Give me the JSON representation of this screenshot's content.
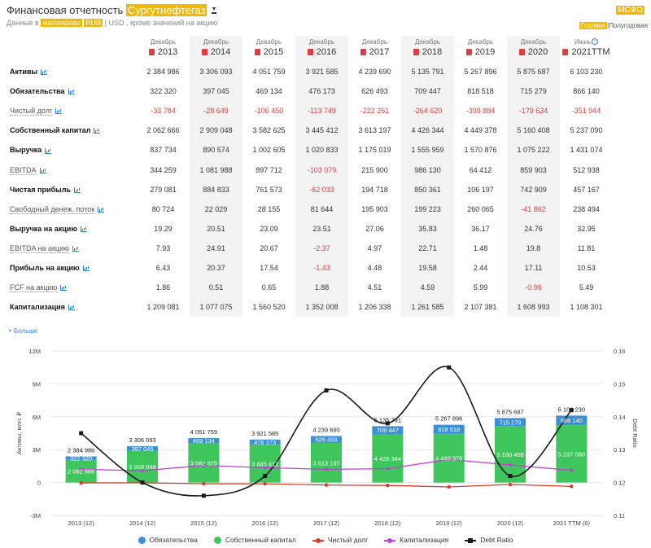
{
  "header": {
    "title_prefix": "Финансовая отчетность",
    "company": "Сургутнефтегаз",
    "units_prefix": "Данные в",
    "units": "миллионах",
    "currency_active": "RUB",
    "separator": "|",
    "currency_other": "USD",
    "units_suffix": ", кроме значений на акцию",
    "standard": "МСФО",
    "period_active": "Годовая",
    "period_other": "Полугодовая"
  },
  "table": {
    "columns": [
      {
        "month": "Декабрь",
        "year": "2013",
        "info": false,
        "shaded": false
      },
      {
        "month": "Декабрь",
        "year": "2014",
        "info": false,
        "shaded": true
      },
      {
        "month": "Декабрь",
        "year": "2015",
        "info": false,
        "shaded": false
      },
      {
        "month": "Декабрь",
        "year": "2016",
        "info": false,
        "shaded": true
      },
      {
        "month": "Декабрь",
        "year": "2017",
        "info": false,
        "shaded": false
      },
      {
        "month": "Декабрь",
        "year": "2018",
        "info": false,
        "shaded": true
      },
      {
        "month": "Декабрь",
        "year": "2019",
        "info": false,
        "shaded": false
      },
      {
        "month": "Декабрь",
        "year": "2020",
        "info": false,
        "shaded": true
      },
      {
        "month": "Июнь",
        "year": "2021TTM",
        "info": true,
        "shaded": false
      }
    ],
    "info_mark": "i",
    "rows": [
      {
        "label": "Активы",
        "bold": true,
        "values": [
          "2 384 986",
          "3 306 093",
          "4 051 759",
          "3 921 585",
          "4 239 690",
          "5 135 791",
          "5 267 896",
          "5 875 687",
          "6 103 230"
        ]
      },
      {
        "label": "Обязательства",
        "bold": true,
        "values": [
          "322 320",
          "397 045",
          "469 134",
          "476 173",
          "626 493",
          "709 447",
          "818 518",
          "715 279",
          "866 140"
        ]
      },
      {
        "label": "Чистый долг",
        "bold": false,
        "values": [
          "-33 784",
          "-28 649",
          "-106 450",
          "-113 749",
          "-222 261",
          "-264 620",
          "-399 884",
          "-179 634",
          "-351 944"
        ]
      },
      {
        "label": "Собственный капитал",
        "bold": true,
        "values": [
          "2 062 666",
          "2 909 048",
          "3 582 625",
          "3 445 412",
          "3 613 197",
          "4 426 344",
          "4 449 378",
          "5 160 408",
          "5 237 090"
        ]
      },
      {
        "label": "Выручка",
        "bold": true,
        "values": [
          "837 734",
          "890 574",
          "1 002 605",
          "1 020 833",
          "1 175 019",
          "1 555 959",
          "1 570 876",
          "1 075 222",
          "1 431 074"
        ]
      },
      {
        "label": "EBITDA",
        "bold": false,
        "values": [
          "344 259",
          "1 081 988",
          "897 712",
          "-103 079",
          "215 900",
          "986 130",
          "64 412",
          "859 903",
          "512 938"
        ]
      },
      {
        "label": "Чистая прибыль",
        "bold": true,
        "values": [
          "279 081",
          "884 833",
          "761 573",
          "-62 033",
          "194 718",
          "850 361",
          "106 197",
          "742 909",
          "457 167"
        ]
      },
      {
        "label": "Свободный денеж. поток",
        "bold": false,
        "values": [
          "80 724",
          "22 029",
          "28 155",
          "81 644",
          "195 903",
          "199 223",
          "260 065",
          "-41 862",
          "238 494"
        ]
      },
      {
        "label": "Выручка на акцию",
        "bold": true,
        "values": [
          "19.29",
          "20.51",
          "23.09",
          "23.51",
          "27.06",
          "35.83",
          "36.17",
          "24.76",
          "32.95"
        ]
      },
      {
        "label": "EBITDA на акцию",
        "bold": false,
        "values": [
          "7.93",
          "24.91",
          "20.67",
          "-2.37",
          "4.97",
          "22.71",
          "1.48",
          "19.8",
          "11.81"
        ]
      },
      {
        "label": "Прибыль на акцию",
        "bold": true,
        "values": [
          "6.43",
          "20.37",
          "17.54",
          "-1.43",
          "4.48",
          "19.58",
          "2.44",
          "17.11",
          "10.53"
        ]
      },
      {
        "label": "FCF на акцию",
        "bold": false,
        "values": [
          "1.86",
          "0.51",
          "0.65",
          "1.88",
          "4.51",
          "4.59",
          "5.99",
          "-0.96",
          "5.49"
        ]
      },
      {
        "label": "Капитализация",
        "bold": true,
        "values": [
          "1 209 081",
          "1 077 075",
          "1 560 520",
          "1 352 008",
          "1 206 338",
          "1 261 585",
          "2 107 381",
          "1 608 993",
          "1 108 301"
        ]
      }
    ]
  },
  "more_link": "Больше",
  "chart_data": {
    "type": "bar",
    "categories": [
      "2013 (12)",
      "2014 (12)",
      "2015 (12)",
      "2016 (12)",
      "2017 (12)",
      "2018 (12)",
      "2019 (12)",
      "2020 (12)",
      "2021 TTM (6)"
    ],
    "ylabel": "Активы, млн. ₽",
    "y2label": "Debt Ratio",
    "ylim": [
      -3000000,
      12000000
    ],
    "y_ticks": [
      -3000000,
      0,
      3000000,
      6000000,
      9000000,
      12000000
    ],
    "y_tick_labels": [
      "-3M",
      "0",
      "3M",
      "6M",
      "9M",
      "12M"
    ],
    "y2lim": [
      0.11,
      0.16
    ],
    "y2_ticks": [
      0.11,
      0.12,
      0.13,
      0.14,
      0.15,
      0.16
    ],
    "y2_tick_labels": [
      "0.11",
      "0.12",
      "0.13",
      "0.14",
      "0.15",
      "0.16"
    ],
    "totals": [
      2384986,
      3306093,
      4051759,
      3921585,
      4239690,
      5135791,
      5267896,
      5875687,
      6103230
    ],
    "total_labels": [
      "2 384 986",
      "3 306 093",
      "4 051 759",
      "3 921 585",
      "4 239 690",
      "5 135 791",
      "5 267 896",
      "5 875 687",
      "6 103 230"
    ],
    "series": [
      {
        "name": "Обязательства",
        "kind": "bar-stack",
        "color": "#3b8fd6",
        "values": [
          322320,
          397045,
          469134,
          476173,
          626493,
          709447,
          818518,
          715279,
          866140
        ],
        "labels": [
          "322 320",
          "397 045",
          "469 134",
          "476 173",
          "626 493",
          "709 447",
          "818 518",
          "715 279",
          "866 140"
        ]
      },
      {
        "name": "Собственный капитал",
        "kind": "bar-stack",
        "color": "#3ec65c",
        "values": [
          2062666,
          2909048,
          3582625,
          3445412,
          3613197,
          4426344,
          4449378,
          5160408,
          5237090
        ],
        "labels": [
          "2 062 666",
          "2 909 048",
          "3 582 625",
          "3 445 412",
          "3 613 197",
          "4 426 344",
          "4 449 378",
          "5 160 408",
          "5 237 090"
        ]
      },
      {
        "name": "Чистый долг",
        "kind": "line",
        "color": "#d93b2b",
        "values": [
          -33784,
          -28649,
          -106450,
          -113749,
          -222261,
          -264620,
          -399884,
          -179634,
          -351944
        ]
      },
      {
        "name": "Капитализация",
        "kind": "line",
        "color": "#c23fd4",
        "values": [
          1209081,
          1077075,
          1560520,
          1352008,
          1206338,
          1261585,
          2107381,
          1608993,
          1108301
        ]
      },
      {
        "name": "Debt Ratio",
        "kind": "line-secondary",
        "color": "#1a1a1a",
        "values": [
          0.135,
          0.12,
          0.116,
          0.122,
          0.148,
          0.138,
          0.155,
          0.122,
          0.142
        ]
      }
    ],
    "legend_position": "bottom"
  }
}
